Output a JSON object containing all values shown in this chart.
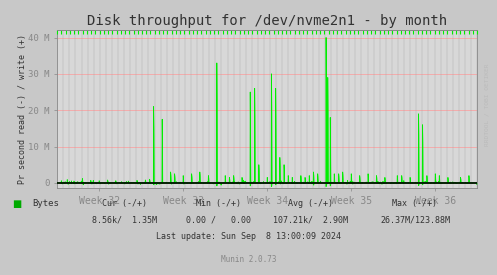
{
  "title": "Disk throughput for /dev/nvme2n1 - by month",
  "ylabel": "Pr second read (-) / write (+)",
  "xlabel_ticks": [
    "Week 32",
    "Week 33",
    "Week 34",
    "Week 35",
    "Week 36"
  ],
  "ylim": [
    -1500000,
    42000000
  ],
  "yticks": [
    0,
    10000000,
    20000000,
    30000000,
    40000000
  ],
  "ytick_labels": [
    "0",
    "10 M",
    "20 M",
    "30 M",
    "40 M"
  ],
  "bg_color": "#c8c8c8",
  "plot_bg_color": "#d8d8d8",
  "grid_color_h": "#ff9999",
  "grid_color_v": "#aaaaaa",
  "line_color": "#00ee00",
  "axis_color": "#888888",
  "text_color": "#333333",
  "legend_color": "#00aa00",
  "rrdtool_label": "RRDTOOL / TOBI OETIKER",
  "title_fontsize": 10,
  "num_points": 2000
}
